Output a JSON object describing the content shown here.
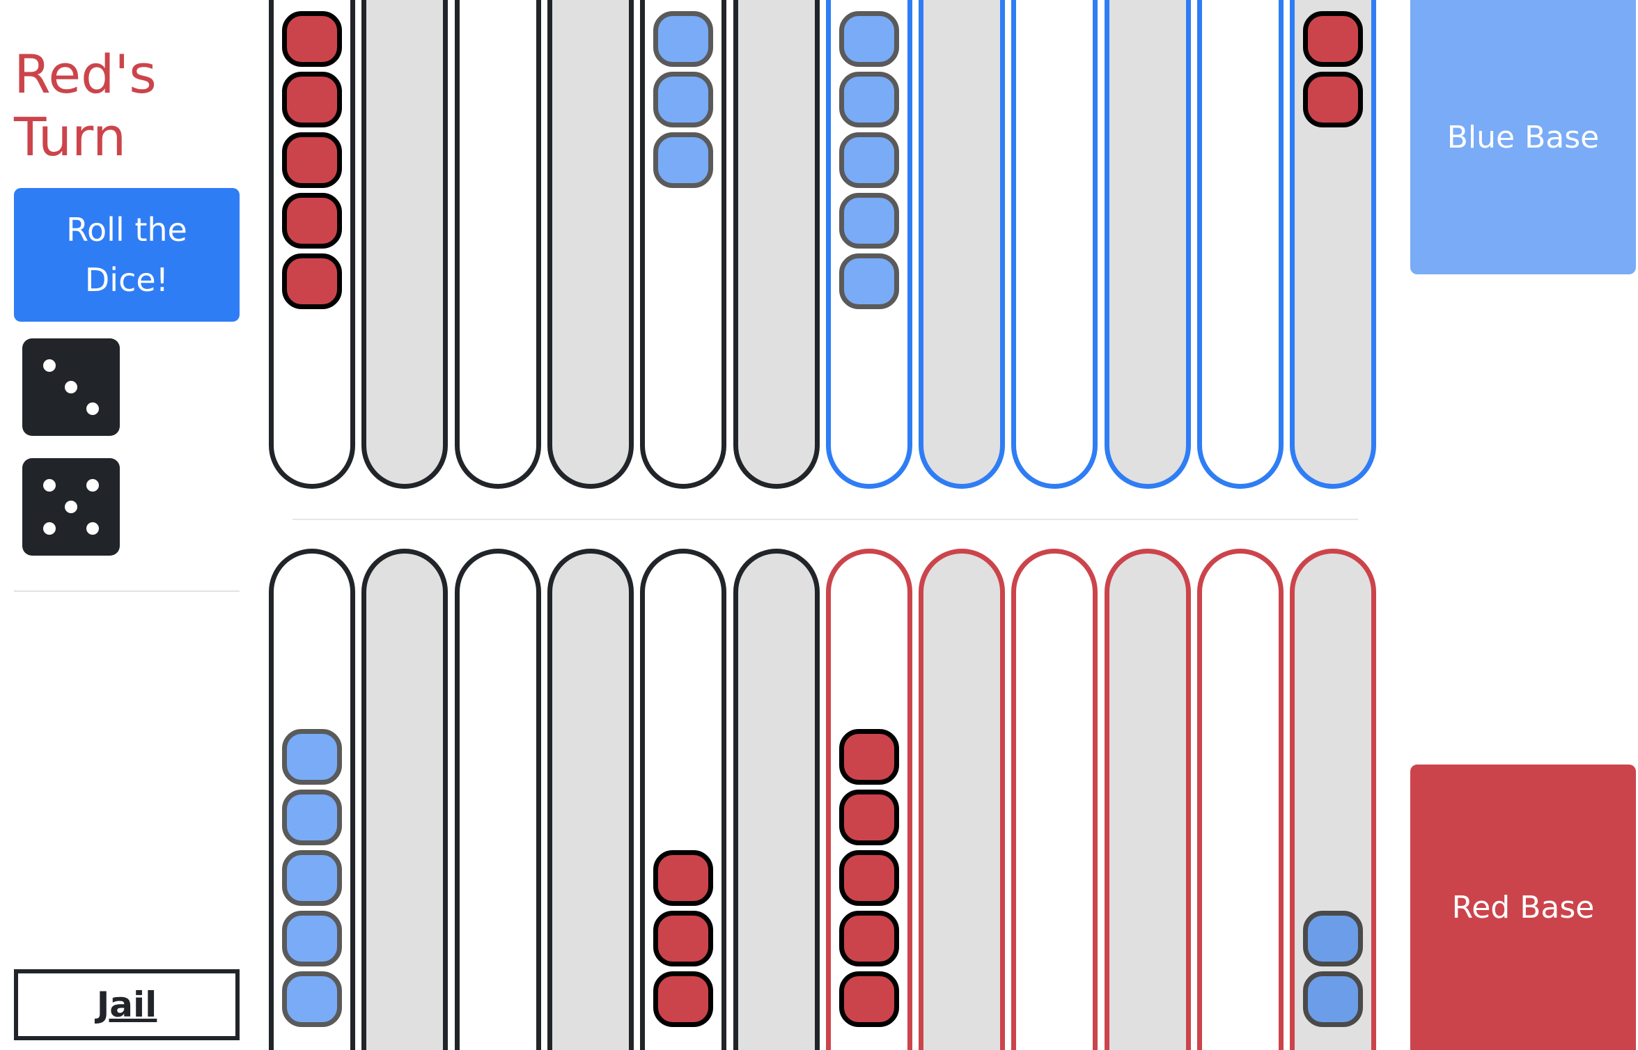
{
  "status": {
    "turn_text": "Red's Turn"
  },
  "controls": {
    "roll_label": "Roll the Dice!",
    "jail_label": "Jail"
  },
  "dice": [
    3,
    5
  ],
  "bases": {
    "blue_label": "Blue Base",
    "red_label": "Red Base"
  },
  "colors": {
    "red": "#cc444b",
    "blue": "#2f7df5",
    "blue_checker": "#79abf7",
    "dark": "#212529"
  },
  "board": {
    "top_points": [
      {
        "shade": "white",
        "owner": "neutral",
        "checkers": [
          "red",
          "red",
          "red",
          "red",
          "red"
        ]
      },
      {
        "shade": "grey",
        "owner": "neutral",
        "checkers": []
      },
      {
        "shade": "white",
        "owner": "neutral",
        "checkers": []
      },
      {
        "shade": "grey",
        "owner": "neutral",
        "checkers": []
      },
      {
        "shade": "white",
        "owner": "neutral",
        "checkers": [
          "blue",
          "blue",
          "blue"
        ]
      },
      {
        "shade": "grey",
        "owner": "neutral",
        "checkers": []
      },
      {
        "shade": "white",
        "owner": "blue",
        "checkers": [
          "blue",
          "blue",
          "blue",
          "blue",
          "blue"
        ]
      },
      {
        "shade": "grey",
        "owner": "blue",
        "checkers": []
      },
      {
        "shade": "white",
        "owner": "blue",
        "checkers": []
      },
      {
        "shade": "grey",
        "owner": "blue",
        "checkers": []
      },
      {
        "shade": "white",
        "owner": "blue",
        "checkers": []
      },
      {
        "shade": "grey",
        "owner": "blue",
        "checkers": [
          "red",
          "red"
        ]
      }
    ],
    "bottom_points": [
      {
        "shade": "white",
        "owner": "neutral",
        "checkers": [
          "blue",
          "blue",
          "blue",
          "blue",
          "blue"
        ]
      },
      {
        "shade": "grey",
        "owner": "neutral",
        "checkers": []
      },
      {
        "shade": "white",
        "owner": "neutral",
        "checkers": []
      },
      {
        "shade": "grey",
        "owner": "neutral",
        "checkers": []
      },
      {
        "shade": "white",
        "owner": "neutral",
        "checkers": [
          "red",
          "red",
          "red"
        ]
      },
      {
        "shade": "grey",
        "owner": "neutral",
        "checkers": []
      },
      {
        "shade": "white",
        "owner": "red",
        "checkers": [
          "red",
          "red",
          "red",
          "red",
          "red"
        ]
      },
      {
        "shade": "grey",
        "owner": "red",
        "checkers": []
      },
      {
        "shade": "white",
        "owner": "red",
        "checkers": []
      },
      {
        "shade": "grey",
        "owner": "red",
        "checkers": []
      },
      {
        "shade": "white",
        "owner": "red",
        "checkers": []
      },
      {
        "shade": "grey",
        "owner": "red",
        "checkers": [
          "blue-dark",
          "blue-dark"
        ]
      }
    ]
  }
}
